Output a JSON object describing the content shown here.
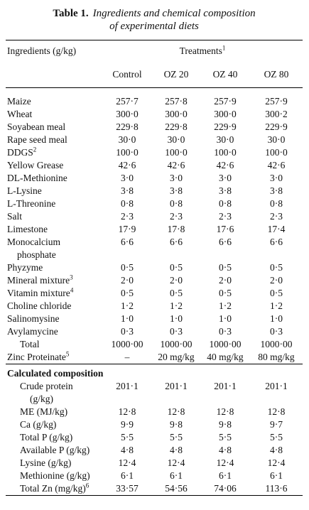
{
  "title": {
    "label": "Table 1.",
    "caption": [
      "Ingredients and chemical composition",
      "of experimental diets"
    ]
  },
  "header": {
    "ingredients": "Ingredients (g/kg)",
    "treatments": "Treatments",
    "treatments_note": "1",
    "columns": [
      "Control",
      "OZ 20",
      "OZ 40",
      "OZ 80"
    ]
  },
  "ingredients": [
    {
      "label": "Maize",
      "values": [
        "257·7",
        "257·8",
        "257·9",
        "257·9"
      ]
    },
    {
      "label": "Wheat",
      "values": [
        "300·0",
        "300·0",
        "300·0",
        "300·2"
      ]
    },
    {
      "label": "Soyabean meal",
      "values": [
        "229·8",
        "229·8",
        "229·9",
        "229·9"
      ]
    },
    {
      "label": "Rape seed meal",
      "values": [
        "30·0",
        "30·0",
        "30·0",
        "30·0"
      ]
    },
    {
      "label": "DDGS",
      "note": "2",
      "values": [
        "100·0",
        "100·0",
        "100·0",
        "100·0"
      ]
    },
    {
      "label": "Yellow Grease",
      "values": [
        "42·6",
        "42·6",
        "42·6",
        "42·6"
      ]
    },
    {
      "label": "DL-Methionine",
      "values": [
        "3·0",
        "3·0",
        "3·0",
        "3·0"
      ]
    },
    {
      "label": "L-Lysine",
      "values": [
        "3·8",
        "3·8",
        "3·8",
        "3·8"
      ]
    },
    {
      "label": "L-Threonine",
      "values": [
        "0·8",
        "0·8",
        "0·8",
        "0·8"
      ]
    },
    {
      "label": "Salt",
      "values": [
        "2·3",
        "2·3",
        "2·3",
        "2·3"
      ]
    },
    {
      "label": "Limestone",
      "values": [
        "17·9",
        "17·8",
        "17·6",
        "17·4"
      ]
    },
    {
      "label": [
        "Monocalcium",
        "phosphate"
      ],
      "values": [
        "6·6",
        "6·6",
        "6·6",
        "6·6"
      ]
    },
    {
      "label": "Phyzyme",
      "values": [
        "0·5",
        "0·5",
        "0·5",
        "0·5"
      ]
    },
    {
      "label": "Mineral mixture",
      "note": "3",
      "values": [
        "2·0",
        "2·0",
        "2·0",
        "2·0"
      ]
    },
    {
      "label": "Vitamin mixture",
      "note": "4",
      "values": [
        "0·5",
        "0·5",
        "0·5",
        "0·5"
      ]
    },
    {
      "label": "Choline chloride",
      "values": [
        "1·2",
        "1·2",
        "1·2",
        "1·2"
      ]
    },
    {
      "label": "Salinomysine",
      "values": [
        "1·0",
        "1·0",
        "1·0",
        "1·0"
      ]
    },
    {
      "label": "Avylamycine",
      "values": [
        "0·3",
        "0·3",
        "0·3",
        "0·3"
      ]
    }
  ],
  "total": {
    "label": "Total",
    "values": [
      "1000·00",
      "1000·00",
      "1000·00",
      "1000·00"
    ]
  },
  "zinc_proteinate": {
    "label": "Zinc Proteinate",
    "note": "5",
    "values": [
      "–",
      "20 mg/kg",
      "40 mg/kg",
      "80 mg/kg"
    ]
  },
  "calculated": {
    "heading": "Calculated composition",
    "rows": [
      {
        "label": [
          "Crude protein",
          "(g/kg)"
        ],
        "values": [
          "201·1",
          "201·1",
          "201·1",
          "201·1"
        ]
      },
      {
        "label": "ME (MJ/kg)",
        "values": [
          "12·8",
          "12·8",
          "12·8",
          "12·8"
        ]
      },
      {
        "label": "Ca (g/kg)",
        "values": [
          "9·9",
          "9·8",
          "9·8",
          "9·7"
        ]
      },
      {
        "label": "Total P (g/kg)",
        "values": [
          "5·5",
          "5·5",
          "5·5",
          "5·5"
        ]
      },
      {
        "label": "Available P (g/kg)",
        "values": [
          "4·8",
          "4·8",
          "4·8",
          "4·8"
        ]
      },
      {
        "label": "Lysine (g/kg)",
        "values": [
          "12·4",
          "12·4",
          "12·4",
          "12·4"
        ]
      },
      {
        "label": "Methionine (g/kg)",
        "values": [
          "6·1",
          "6·1",
          "6·1",
          "6·1"
        ]
      },
      {
        "label": "Total Zn (mg/kg)",
        "note": "6",
        "values": [
          "33·57",
          "54·56",
          "74·06",
          "113·6"
        ]
      }
    ]
  }
}
